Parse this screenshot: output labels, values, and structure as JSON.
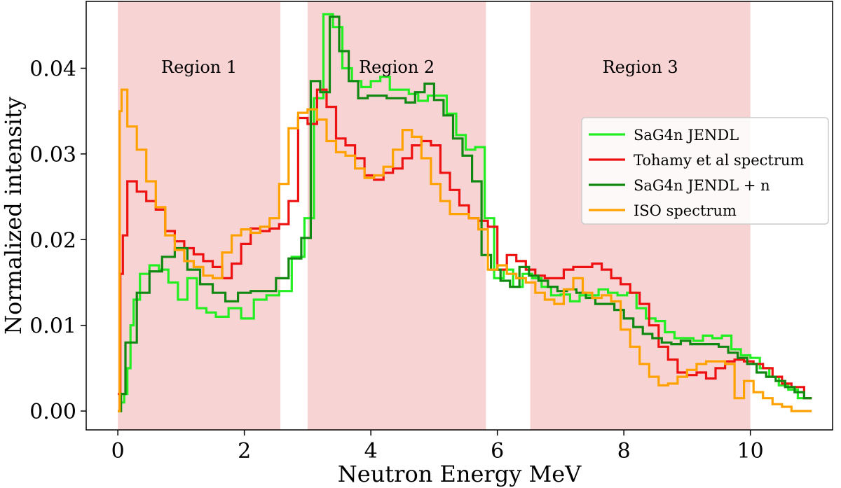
{
  "chart_data": {
    "type": "line",
    "step": true,
    "title": "",
    "xlabel": "Neutron Energy MeV",
    "ylabel": "Normalized intensity",
    "xlim": [
      -0.5,
      11.3
    ],
    "ylim": [
      -0.0022,
      0.0478
    ],
    "xticks": [
      0,
      2,
      4,
      6,
      8,
      10
    ],
    "yticks": [
      0.0,
      0.01,
      0.02,
      0.03,
      0.04
    ],
    "xtick_labels": [
      "0",
      "2",
      "4",
      "6",
      "8",
      "10"
    ],
    "ytick_labels": [
      "0.00",
      "0.01",
      "0.02",
      "0.03",
      "0.04"
    ],
    "legend_position": "right",
    "regions": [
      {
        "label": "Region 1",
        "start": 0.0,
        "end": 2.57
      },
      {
        "label": "Region 2",
        "start": 3.0,
        "end": 5.82
      },
      {
        "label": "Region 3",
        "start": 6.52,
        "end": 10.0
      }
    ],
    "region_color": "#f8d3d3",
    "series": [
      {
        "name": "SaG4n JENDL",
        "color": "#22ee22",
        "x": [
          0.0,
          0.05,
          0.1,
          0.15,
          0.2,
          0.25,
          0.35,
          0.5,
          0.65,
          0.8,
          0.95,
          1.1,
          1.25,
          1.4,
          1.55,
          1.75,
          1.95,
          2.15,
          2.35,
          2.55,
          2.75,
          2.95,
          3.1,
          3.25,
          3.4,
          3.55,
          3.7,
          3.85,
          4.0,
          4.15,
          4.3,
          4.45,
          4.6,
          4.75,
          4.9,
          5.05,
          5.2,
          5.35,
          5.5,
          5.65,
          5.8,
          5.95,
          6.1,
          6.25,
          6.4,
          6.55,
          6.7,
          6.85,
          7.0,
          7.15,
          7.3,
          7.45,
          7.6,
          7.75,
          7.9,
          8.05,
          8.2,
          8.35,
          8.5,
          8.65,
          8.8,
          8.95,
          9.1,
          9.25,
          9.4,
          9.55,
          9.7,
          9.85,
          10.0,
          10.15,
          10.3,
          10.45,
          10.6,
          10.75,
          10.85
        ],
        "y": [
          0.0,
          0.001,
          0.002,
          0.005,
          0.01,
          0.013,
          0.016,
          0.017,
          0.0165,
          0.015,
          0.013,
          0.0155,
          0.012,
          0.0115,
          0.011,
          0.012,
          0.0108,
          0.013,
          0.0135,
          0.014,
          0.018,
          0.0225,
          0.0365,
          0.0463,
          0.0448,
          0.04,
          0.0385,
          0.0378,
          0.0385,
          0.039,
          0.0375,
          0.0375,
          0.037,
          0.0362,
          0.0368,
          0.0368,
          0.0347,
          0.0322,
          0.0305,
          0.0308,
          0.0225,
          0.0155,
          0.0165,
          0.0145,
          0.016,
          0.0155,
          0.0145,
          0.0135,
          0.0136,
          0.0128,
          0.0135,
          0.0135,
          0.0142,
          0.0138,
          0.0135,
          0.0138,
          0.012,
          0.0108,
          0.0105,
          0.0092,
          0.0085,
          0.0085,
          0.0082,
          0.0088,
          0.0085,
          0.0088,
          0.0072,
          0.0065,
          0.0062,
          0.005,
          0.004,
          0.003,
          0.0025,
          0.0015,
          0.0015
        ]
      },
      {
        "name": "Tohamy et al spectrum",
        "color": "#ee1111",
        "x": [
          0.0,
          0.04,
          0.08,
          0.15,
          0.3,
          0.45,
          0.6,
          0.75,
          0.9,
          1.05,
          1.2,
          1.35,
          1.5,
          1.65,
          1.8,
          1.95,
          2.1,
          2.25,
          2.4,
          2.55,
          2.7,
          2.85,
          3.0,
          3.15,
          3.3,
          3.45,
          3.6,
          3.75,
          3.9,
          4.05,
          4.2,
          4.35,
          4.5,
          4.65,
          4.8,
          4.95,
          5.1,
          5.25,
          5.4,
          5.55,
          5.7,
          5.85,
          6.0,
          6.15,
          6.3,
          6.45,
          6.6,
          6.75,
          6.9,
          7.05,
          7.2,
          7.35,
          7.5,
          7.65,
          7.8,
          7.95,
          8.1,
          8.25,
          8.4,
          8.55,
          8.7,
          8.85,
          9.0,
          9.15,
          9.3,
          9.45,
          9.6,
          9.75,
          9.9,
          10.05,
          10.2,
          10.35,
          10.5,
          10.65,
          10.85
        ],
        "y": [
          0.002,
          0.016,
          0.0205,
          0.0268,
          0.0256,
          0.0245,
          0.0235,
          0.021,
          0.0198,
          0.019,
          0.0183,
          0.0175,
          0.0168,
          0.0155,
          0.0172,
          0.0195,
          0.0213,
          0.021,
          0.0213,
          0.0218,
          0.0245,
          0.0342,
          0.0335,
          0.0375,
          0.0355,
          0.0318,
          0.031,
          0.0295,
          0.0275,
          0.027,
          0.0278,
          0.0283,
          0.0295,
          0.031,
          0.0315,
          0.031,
          0.0278,
          0.0258,
          0.024,
          0.0225,
          0.0222,
          0.0215,
          0.0165,
          0.0182,
          0.0175,
          0.0165,
          0.0158,
          0.0155,
          0.0155,
          0.0165,
          0.0168,
          0.0168,
          0.0172,
          0.0165,
          0.0155,
          0.0148,
          0.0138,
          0.0125,
          0.01,
          0.0075,
          0.006,
          0.0045,
          0.0042,
          0.0045,
          0.0038,
          0.005,
          0.0058,
          0.006,
          0.0058,
          0.0055,
          0.005,
          0.004,
          0.0032,
          0.0028,
          0.0015
        ]
      },
      {
        "name": "SaG4n JENDL + n",
        "color": "#118811",
        "x": [
          0.0,
          0.05,
          0.12,
          0.3,
          0.5,
          0.7,
          0.9,
          1.1,
          1.3,
          1.5,
          1.7,
          1.9,
          2.1,
          2.3,
          2.5,
          2.7,
          2.9,
          3.05,
          3.2,
          3.35,
          3.5,
          3.65,
          3.8,
          3.95,
          4.1,
          4.25,
          4.4,
          4.55,
          4.7,
          4.85,
          5.0,
          5.15,
          5.3,
          5.45,
          5.6,
          5.75,
          5.9,
          6.05,
          6.2,
          6.35,
          6.5,
          6.65,
          6.8,
          6.95,
          7.1,
          7.25,
          7.4,
          7.55,
          7.7,
          7.85,
          8.0,
          8.15,
          8.3,
          8.45,
          8.6,
          8.75,
          8.9,
          9.05,
          9.2,
          9.35,
          9.5,
          9.65,
          9.8,
          9.95,
          10.1,
          10.25,
          10.4,
          10.55,
          10.7,
          10.85
        ],
        "y": [
          0.0,
          0.002,
          0.008,
          0.0138,
          0.0163,
          0.018,
          0.019,
          0.0165,
          0.0148,
          0.0138,
          0.0128,
          0.0138,
          0.014,
          0.014,
          0.0155,
          0.0178,
          0.0202,
          0.0385,
          0.0372,
          0.046,
          0.042,
          0.0385,
          0.0365,
          0.0368,
          0.0368,
          0.0365,
          0.0365,
          0.036,
          0.0372,
          0.0382,
          0.0363,
          0.0345,
          0.0318,
          0.0298,
          0.0268,
          0.0182,
          0.0165,
          0.0152,
          0.0145,
          0.0168,
          0.0158,
          0.0152,
          0.0145,
          0.014,
          0.0142,
          0.0138,
          0.0132,
          0.0125,
          0.0125,
          0.0118,
          0.0108,
          0.0098,
          0.009,
          0.0085,
          0.008,
          0.0078,
          0.0082,
          0.0078,
          0.0078,
          0.0078,
          0.0075,
          0.0068,
          0.0062,
          0.0055,
          0.0045,
          0.004,
          0.0035,
          0.0028,
          0.0022,
          0.0015
        ]
      },
      {
        "name": "ISO spectrum",
        "color": "#ffa200",
        "x": [
          0.0,
          0.03,
          0.06,
          0.15,
          0.3,
          0.45,
          0.6,
          0.75,
          0.9,
          1.05,
          1.2,
          1.35,
          1.5,
          1.65,
          1.8,
          1.95,
          2.1,
          2.25,
          2.4,
          2.55,
          2.7,
          2.85,
          3.0,
          3.15,
          3.3,
          3.45,
          3.6,
          3.75,
          3.9,
          4.05,
          4.2,
          4.35,
          4.5,
          4.65,
          4.8,
          4.95,
          5.1,
          5.25,
          5.4,
          5.55,
          5.7,
          5.85,
          6.0,
          6.15,
          6.3,
          6.45,
          6.6,
          6.75,
          6.9,
          7.05,
          7.2,
          7.35,
          7.5,
          7.65,
          7.8,
          7.95,
          8.1,
          8.25,
          8.4,
          8.55,
          8.7,
          8.85,
          9.0,
          9.15,
          9.3,
          9.45,
          9.6,
          9.75,
          9.9,
          10.05,
          10.2,
          10.35,
          10.5,
          10.65,
          10.85
        ],
        "y": [
          0.0,
          0.035,
          0.0375,
          0.0332,
          0.0305,
          0.0268,
          0.0238,
          0.0205,
          0.0188,
          0.0175,
          0.0168,
          0.0158,
          0.0155,
          0.0185,
          0.0205,
          0.0212,
          0.0208,
          0.0215,
          0.0225,
          0.0265,
          0.033,
          0.0348,
          0.0352,
          0.034,
          0.0315,
          0.0302,
          0.0298,
          0.0283,
          0.0272,
          0.0275,
          0.0285,
          0.0305,
          0.0328,
          0.032,
          0.0295,
          0.0265,
          0.0245,
          0.023,
          0.023,
          0.0225,
          0.0212,
          0.0165,
          0.017,
          0.016,
          0.0155,
          0.015,
          0.0138,
          0.013,
          0.0125,
          0.0142,
          0.0155,
          0.0138,
          0.0132,
          0.0135,
          0.0128,
          0.0095,
          0.0075,
          0.0055,
          0.004,
          0.003,
          0.0032,
          0.004,
          0.0048,
          0.0055,
          0.0058,
          0.0058,
          0.0055,
          0.0015,
          0.0035,
          0.0022,
          0.0015,
          0.0008,
          0.0005,
          0.0,
          0.0
        ]
      }
    ]
  }
}
